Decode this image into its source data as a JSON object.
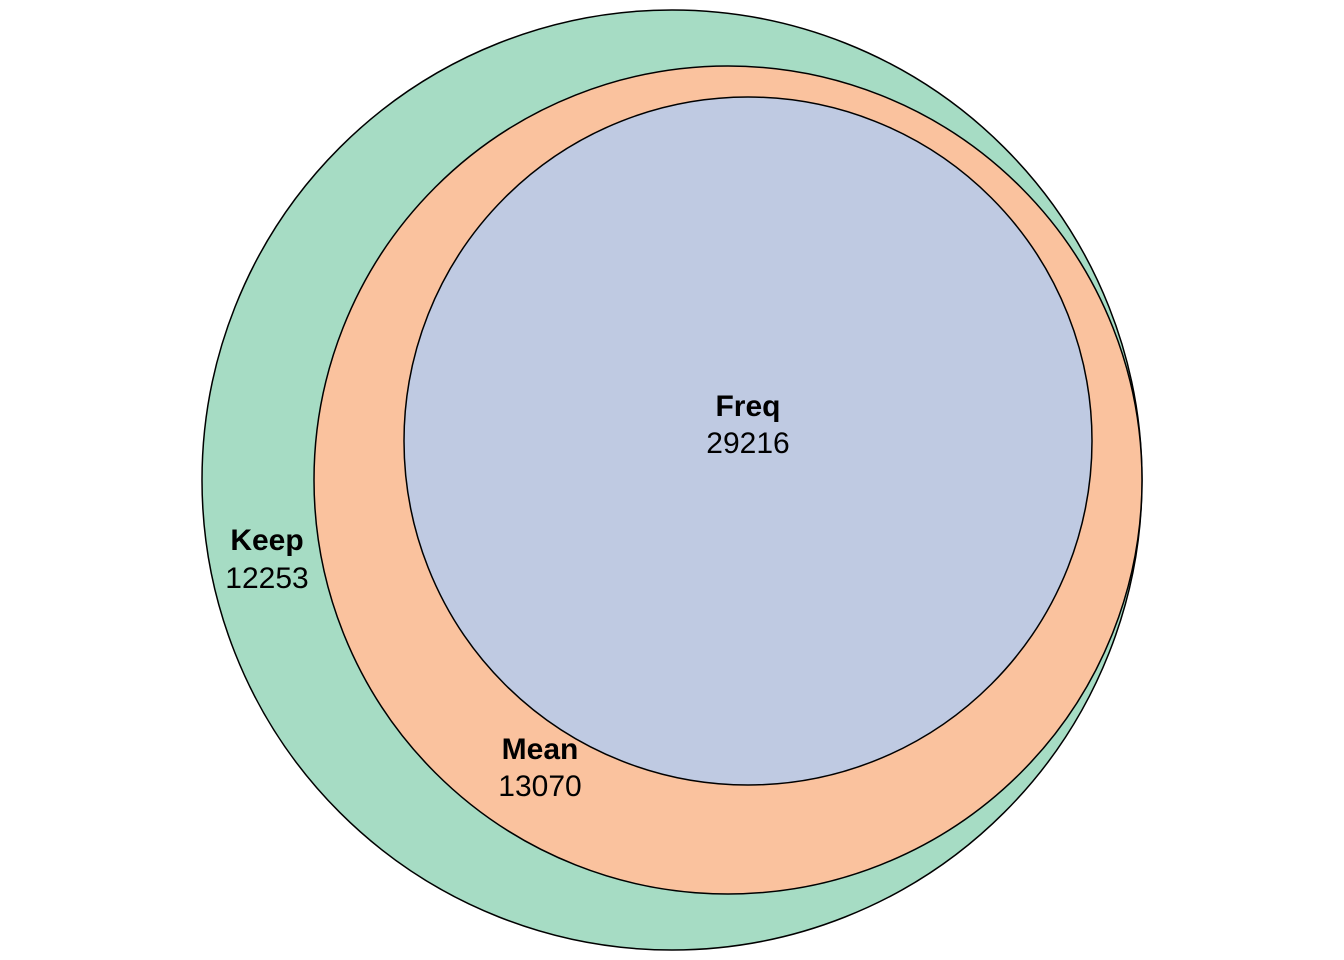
{
  "chart_data": {
    "type": "euler",
    "sets": [
      {
        "key": "keep",
        "name": "Keep",
        "count": "12253",
        "color": "#a6dcc4"
      },
      {
        "key": "mean",
        "name": "Mean",
        "count": "13070",
        "color": "#fac29e"
      },
      {
        "key": "freq",
        "name": "Freq",
        "count": "29216",
        "color": "#bfcae2"
      }
    ],
    "nesting": "Freq inside Mean inside Keep",
    "outline_color": "#000000",
    "background_color": "#ffffff"
  }
}
